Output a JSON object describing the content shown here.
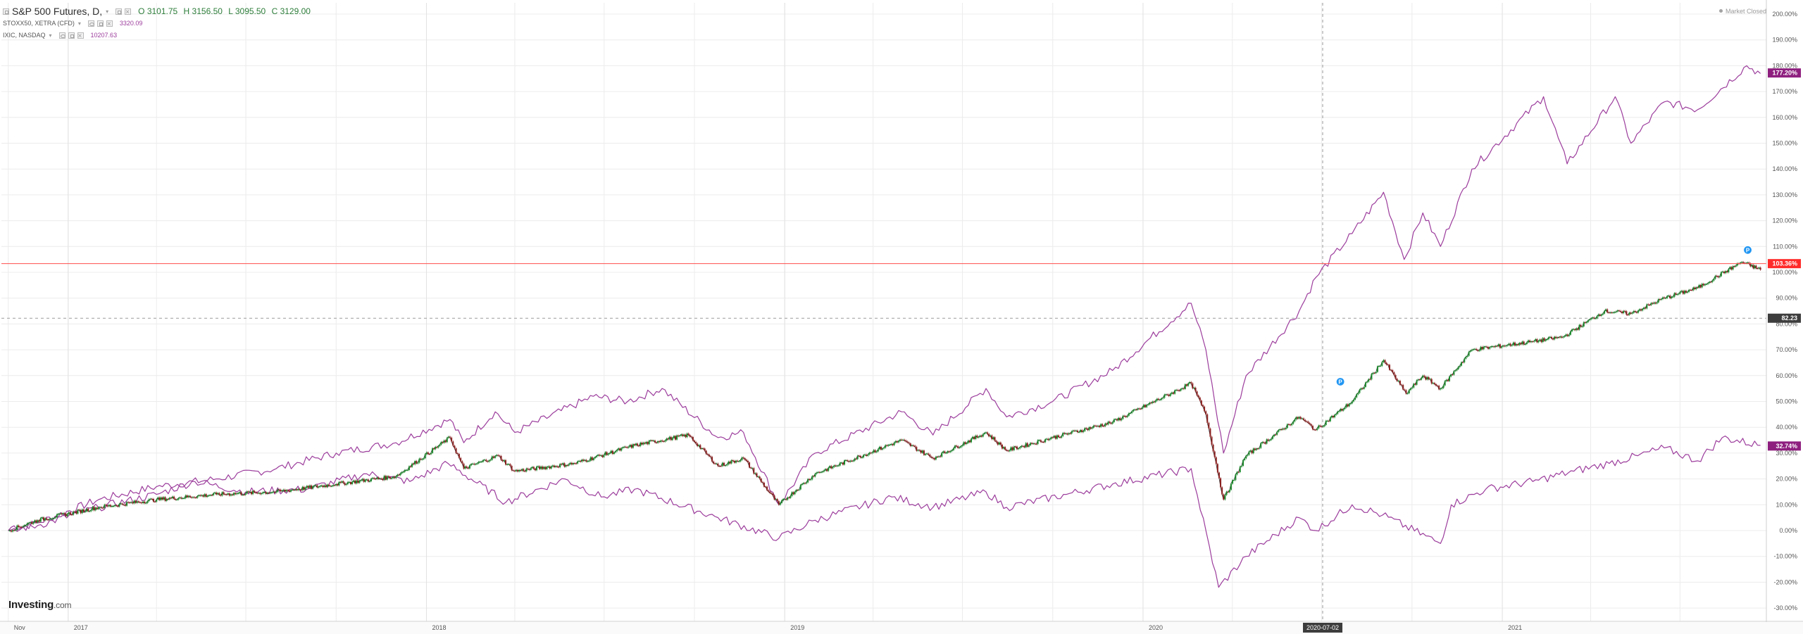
{
  "legend": {
    "main": {
      "name": "S&P 500 Futures, D,",
      "open": "O 3101.75",
      "high": "H 3156.50",
      "low": "L 3095.50",
      "close": "C 3129.00"
    },
    "stoxx": {
      "name": "STOXX50, XETRA (CFD)",
      "value": "3320.09"
    },
    "ixic": {
      "name": "IXIC, NASDAQ",
      "value": "10207.63"
    }
  },
  "status": {
    "market_closed": "Market Closed"
  },
  "logo": {
    "brand": "Investing",
    "suffix": ".com"
  },
  "colors": {
    "candle_up": "#1c8a2c",
    "candle_down": "#8c2020",
    "compare_line": "#9c3d9c",
    "price_line": "#ff4d4d",
    "badge_main": "#ff2b2b",
    "badge_compare": "#8e1f7f",
    "badge_crosshair": "#3d3d3d",
    "grid": "#ececec"
  },
  "chart_data": {
    "type": "line",
    "title": "S&P 500 Futures, D,",
    "y_axis_unit": "%",
    "ylim": [
      -30,
      200
    ],
    "y_ticks": [
      "200.00%",
      "190.00%",
      "180.00%",
      "170.00%",
      "160.00%",
      "150.00%",
      "140.00%",
      "130.00%",
      "120.00%",
      "110.00%",
      "100.00%",
      "90.00%",
      "80.00%",
      "70.00%",
      "60.00%",
      "50.00%",
      "40.00%",
      "30.00%",
      "20.00%",
      "10.00%",
      "0.00%",
      "-10.00%",
      "-20.00%",
      "-30.00%"
    ],
    "x_ticks": [
      {
        "label": "Nov",
        "x": "2016-11"
      },
      {
        "label": "2017",
        "x": "2017-01"
      },
      {
        "label": "2018",
        "x": "2018-01"
      },
      {
        "label": "2019",
        "x": "2019-01"
      },
      {
        "label": "2020",
        "x": "2020-01"
      },
      {
        "label": "2020-07-02",
        "x": "2020-07-02"
      },
      {
        "label": "2021",
        "x": "2021-01"
      }
    ],
    "grid": true,
    "crosshair": {
      "x_label": "2020-07-02",
      "y_label": "82.23"
    },
    "series": [
      {
        "name": "S&P 500 Futures, D,",
        "style": "candles",
        "last_label": "103.36%",
        "points": [
          [
            "2016-11-01",
            0
          ],
          [
            "2016-12-01",
            4
          ],
          [
            "2017-02-01",
            9
          ],
          [
            "2017-04-01",
            12
          ],
          [
            "2017-06-01",
            14
          ],
          [
            "2017-08-01",
            15
          ],
          [
            "2017-10-01",
            18
          ],
          [
            "2017-12-01",
            21
          ],
          [
            "2018-01-25",
            36
          ],
          [
            "2018-02-08",
            24
          ],
          [
            "2018-03-15",
            29
          ],
          [
            "2018-04-01",
            23
          ],
          [
            "2018-06-01",
            26
          ],
          [
            "2018-08-01",
            33
          ],
          [
            "2018-09-25",
            37
          ],
          [
            "2018-10-25",
            25
          ],
          [
            "2018-11-20",
            28
          ],
          [
            "2018-12-26",
            10
          ],
          [
            "2019-02-01",
            22
          ],
          [
            "2019-04-30",
            35
          ],
          [
            "2019-06-01",
            28
          ],
          [
            "2019-07-25",
            38
          ],
          [
            "2019-08-15",
            31
          ],
          [
            "2019-10-01",
            36
          ],
          [
            "2019-12-01",
            42
          ],
          [
            "2020-02-19",
            57
          ],
          [
            "2020-03-05",
            45
          ],
          [
            "2020-03-23",
            12
          ],
          [
            "2020-04-15",
            29
          ],
          [
            "2020-06-08",
            44
          ],
          [
            "2020-06-25",
            39
          ],
          [
            "2020-08-01",
            50
          ],
          [
            "2020-09-02",
            66
          ],
          [
            "2020-09-25",
            53
          ],
          [
            "2020-10-12",
            60
          ],
          [
            "2020-10-30",
            55
          ],
          [
            "2020-12-01",
            70
          ],
          [
            "2021-01-29",
            73
          ],
          [
            "2021-03-04",
            75
          ],
          [
            "2021-04-15",
            85
          ],
          [
            "2021-05-12",
            84
          ],
          [
            "2021-06-15",
            90
          ],
          [
            "2021-07-19",
            94
          ],
          [
            "2021-09-02",
            104
          ],
          [
            "2021-09-21",
            101
          ]
        ]
      },
      {
        "name": "IXIC, NASDAQ",
        "style": "line",
        "last_label": "177.20%",
        "points": [
          [
            "2016-11-01",
            0
          ],
          [
            "2016-12-01",
            3
          ],
          [
            "2017-02-01",
            12
          ],
          [
            "2017-04-01",
            17
          ],
          [
            "2017-06-01",
            20
          ],
          [
            "2017-08-01",
            24
          ],
          [
            "2017-10-01",
            30
          ],
          [
            "2017-12-01",
            34
          ],
          [
            "2018-01-25",
            43
          ],
          [
            "2018-02-08",
            34
          ],
          [
            "2018-03-12",
            46
          ],
          [
            "2018-04-01",
            38
          ],
          [
            "2018-06-20",
            52
          ],
          [
            "2018-07-25",
            50
          ],
          [
            "2018-08-29",
            55
          ],
          [
            "2018-10-25",
            36
          ],
          [
            "2018-11-20",
            38
          ],
          [
            "2018-12-26",
            10
          ],
          [
            "2019-02-01",
            30
          ],
          [
            "2019-04-30",
            46
          ],
          [
            "2019-06-01",
            37
          ],
          [
            "2019-07-25",
            55
          ],
          [
            "2019-08-15",
            44
          ],
          [
            "2019-10-01",
            50
          ],
          [
            "2019-12-01",
            62
          ],
          [
            "2020-02-19",
            88
          ],
          [
            "2020-03-05",
            70
          ],
          [
            "2020-03-23",
            30
          ],
          [
            "2020-04-15",
            60
          ],
          [
            "2020-06-08",
            85
          ],
          [
            "2020-06-25",
            98
          ],
          [
            "2020-08-01",
            115
          ],
          [
            "2020-09-02",
            131
          ],
          [
            "2020-09-23",
            105
          ],
          [
            "2020-10-12",
            123
          ],
          [
            "2020-10-30",
            110
          ],
          [
            "2020-12-01",
            140
          ],
          [
            "2021-02-12",
            168
          ],
          [
            "2021-03-08",
            142
          ],
          [
            "2021-04-26",
            168
          ],
          [
            "2021-05-12",
            150
          ],
          [
            "2021-06-15",
            166
          ],
          [
            "2021-07-19",
            163
          ],
          [
            "2021-09-07",
            180
          ],
          [
            "2021-09-21",
            177
          ]
        ]
      },
      {
        "name": "STOXX50, XETRA (CFD)",
        "style": "line",
        "last_label": "32.74%",
        "points": [
          [
            "2016-11-01",
            0
          ],
          [
            "2016-12-01",
            2
          ],
          [
            "2017-02-01",
            9
          ],
          [
            "2017-04-01",
            14
          ],
          [
            "2017-05-10",
            19
          ],
          [
            "2017-07-01",
            15
          ],
          [
            "2017-09-01",
            16
          ],
          [
            "2017-11-01",
            22
          ],
          [
            "2017-12-15",
            19
          ],
          [
            "2018-01-23",
            26
          ],
          [
            "2018-03-23",
            11
          ],
          [
            "2018-05-22",
            20
          ],
          [
            "2018-06-28",
            13
          ],
          [
            "2018-08-01",
            16
          ],
          [
            "2018-10-25",
            5
          ],
          [
            "2018-12-26",
            -3
          ],
          [
            "2019-02-01",
            4
          ],
          [
            "2019-04-20",
            13
          ],
          [
            "2019-06-01",
            9
          ],
          [
            "2019-07-25",
            15
          ],
          [
            "2019-08-15",
            9
          ],
          [
            "2019-10-15",
            14
          ],
          [
            "2019-12-01",
            18
          ],
          [
            "2020-02-19",
            24
          ],
          [
            "2020-03-18",
            -22
          ],
          [
            "2020-04-15",
            -10
          ],
          [
            "2020-06-08",
            5
          ],
          [
            "2020-06-25",
            0
          ],
          [
            "2020-08-01",
            10
          ],
          [
            "2020-09-01",
            6
          ],
          [
            "2020-10-30",
            -5
          ],
          [
            "2020-11-10",
            10
          ],
          [
            "2020-12-15",
            16
          ],
          [
            "2021-02-01",
            19
          ],
          [
            "2021-03-15",
            23
          ],
          [
            "2021-04-20",
            26
          ],
          [
            "2021-05-19",
            29
          ],
          [
            "2021-06-15",
            32
          ],
          [
            "2021-07-19",
            27
          ],
          [
            "2021-08-13",
            36
          ],
          [
            "2021-09-21",
            33
          ]
        ]
      }
    ]
  }
}
